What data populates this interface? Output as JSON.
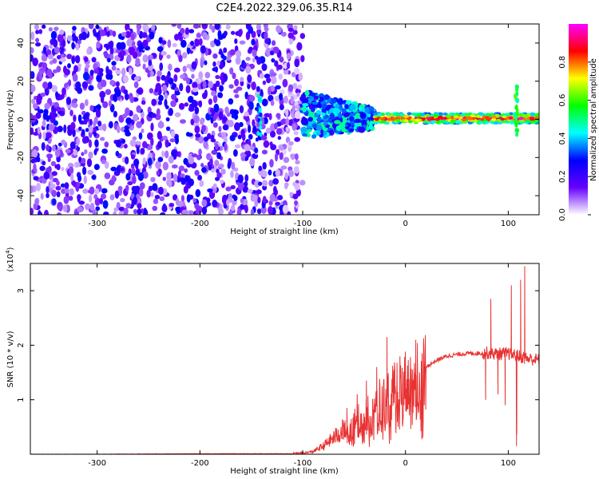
{
  "chart_data": [
    {
      "type": "heatmap",
      "title": "C2E4.2022.329.06.35.R14",
      "xlabel": "Height of straight line (km)",
      "ylabel": "Frequency (Hz)",
      "xlim": [
        -365,
        130
      ],
      "ylim": [
        -50,
        50
      ],
      "x_ticks": [
        -300,
        -200,
        -100,
        0,
        100
      ],
      "x_tick_labels": [
        "-300",
        "-200",
        "-100",
        "0",
        "100"
      ],
      "y_ticks": [
        -40,
        -20,
        0,
        20,
        40
      ],
      "y_tick_labels": [
        "-40",
        "-20",
        "0",
        "20",
        "40"
      ],
      "colorbar": {
        "label": "Normalized spectral amplitude",
        "range": [
          0,
          1
        ],
        "ticks": [
          0.0,
          0.2,
          0.4,
          0.6,
          0.8
        ],
        "tick_labels": [
          "0.0",
          "0.2",
          "0.4",
          "0.6",
          "0.8"
        ],
        "colors": [
          "#ffffff",
          "#6600ff",
          "#0000ff",
          "#00ffff",
          "#00ff00",
          "#ffff00",
          "#ff0000",
          "#ff00ff"
        ]
      },
      "regions": [
        {
          "x_range": [
            -365,
            -100
          ],
          "y_range": [
            -50,
            50
          ],
          "amplitude": [
            0.1,
            0.3
          ],
          "pattern": "noise"
        },
        {
          "x_range": [
            -100,
            -30
          ],
          "y_range": [
            -10,
            15
          ],
          "amplitude": [
            0.2,
            0.5
          ],
          "pattern": "converging band"
        },
        {
          "x_range": [
            -30,
            130
          ],
          "y_range": [
            -2,
            3
          ],
          "amplitude": [
            0.4,
            0.9
          ],
          "pattern": "narrow band near 0 Hz"
        }
      ],
      "spikes": [
        {
          "x": -142,
          "y_range": [
            -8,
            14
          ],
          "amplitude": 0.35
        },
        {
          "x": 108,
          "y_range": [
            -10,
            18
          ],
          "amplitude": 0.5
        }
      ]
    },
    {
      "type": "line",
      "xlabel": "Height of straight line (km)",
      "ylabel": "SNR (10 * v/v)",
      "y_multiplier": "(x10",
      "y_multiplier_exp": "4",
      "y_multiplier_close": ")",
      "xlim": [
        -365,
        130
      ],
      "ylim": [
        0,
        3.5
      ],
      "x_ticks": [
        -300,
        -200,
        -100,
        0,
        100
      ],
      "x_tick_labels": [
        "-300",
        "-200",
        "-100",
        "0",
        "100"
      ],
      "y_ticks": [
        1,
        2,
        3
      ],
      "y_tick_labels": [
        "1",
        "2",
        "3"
      ],
      "color": "#e83232",
      "series": [
        {
          "x": [
            -365,
            -300,
            -200,
            -110,
            -100,
            -90,
            -80,
            -70,
            -60,
            -50,
            -40,
            -30,
            -20,
            -10,
            0,
            10,
            20,
            30,
            40,
            50,
            60,
            70,
            80,
            90,
            100,
            110,
            120,
            130
          ],
          "values": [
            0.0,
            0.0,
            0.01,
            0.01,
            0.02,
            0.05,
            0.15,
            0.3,
            0.45,
            0.55,
            0.7,
            0.85,
            1.0,
            1.15,
            1.3,
            1.45,
            1.6,
            1.72,
            1.8,
            1.83,
            1.85,
            1.85,
            1.86,
            1.84,
            1.85,
            1.8,
            1.75,
            1.73
          ]
        }
      ],
      "spikes": [
        {
          "x": -57,
          "y": 0.85
        },
        {
          "x": -47,
          "y": 1.1
        },
        {
          "x": -38,
          "y": 1.35
        },
        {
          "x": -28,
          "y": 1.6
        },
        {
          "x": -18,
          "y": 2.15
        },
        {
          "x": -10,
          "y": 1.25
        },
        {
          "x": 10,
          "y": 2.1
        },
        {
          "x": 78,
          "y": 1.0
        },
        {
          "x": 83,
          "y": 2.85
        },
        {
          "x": 90,
          "y": 1.1
        },
        {
          "x": 97,
          "y": 0.9
        },
        {
          "x": 103,
          "y": 3.1
        },
        {
          "x": 108,
          "y": 0.15
        },
        {
          "x": 112,
          "y": 3.2
        },
        {
          "x": 116,
          "y": 3.45
        }
      ]
    }
  ]
}
